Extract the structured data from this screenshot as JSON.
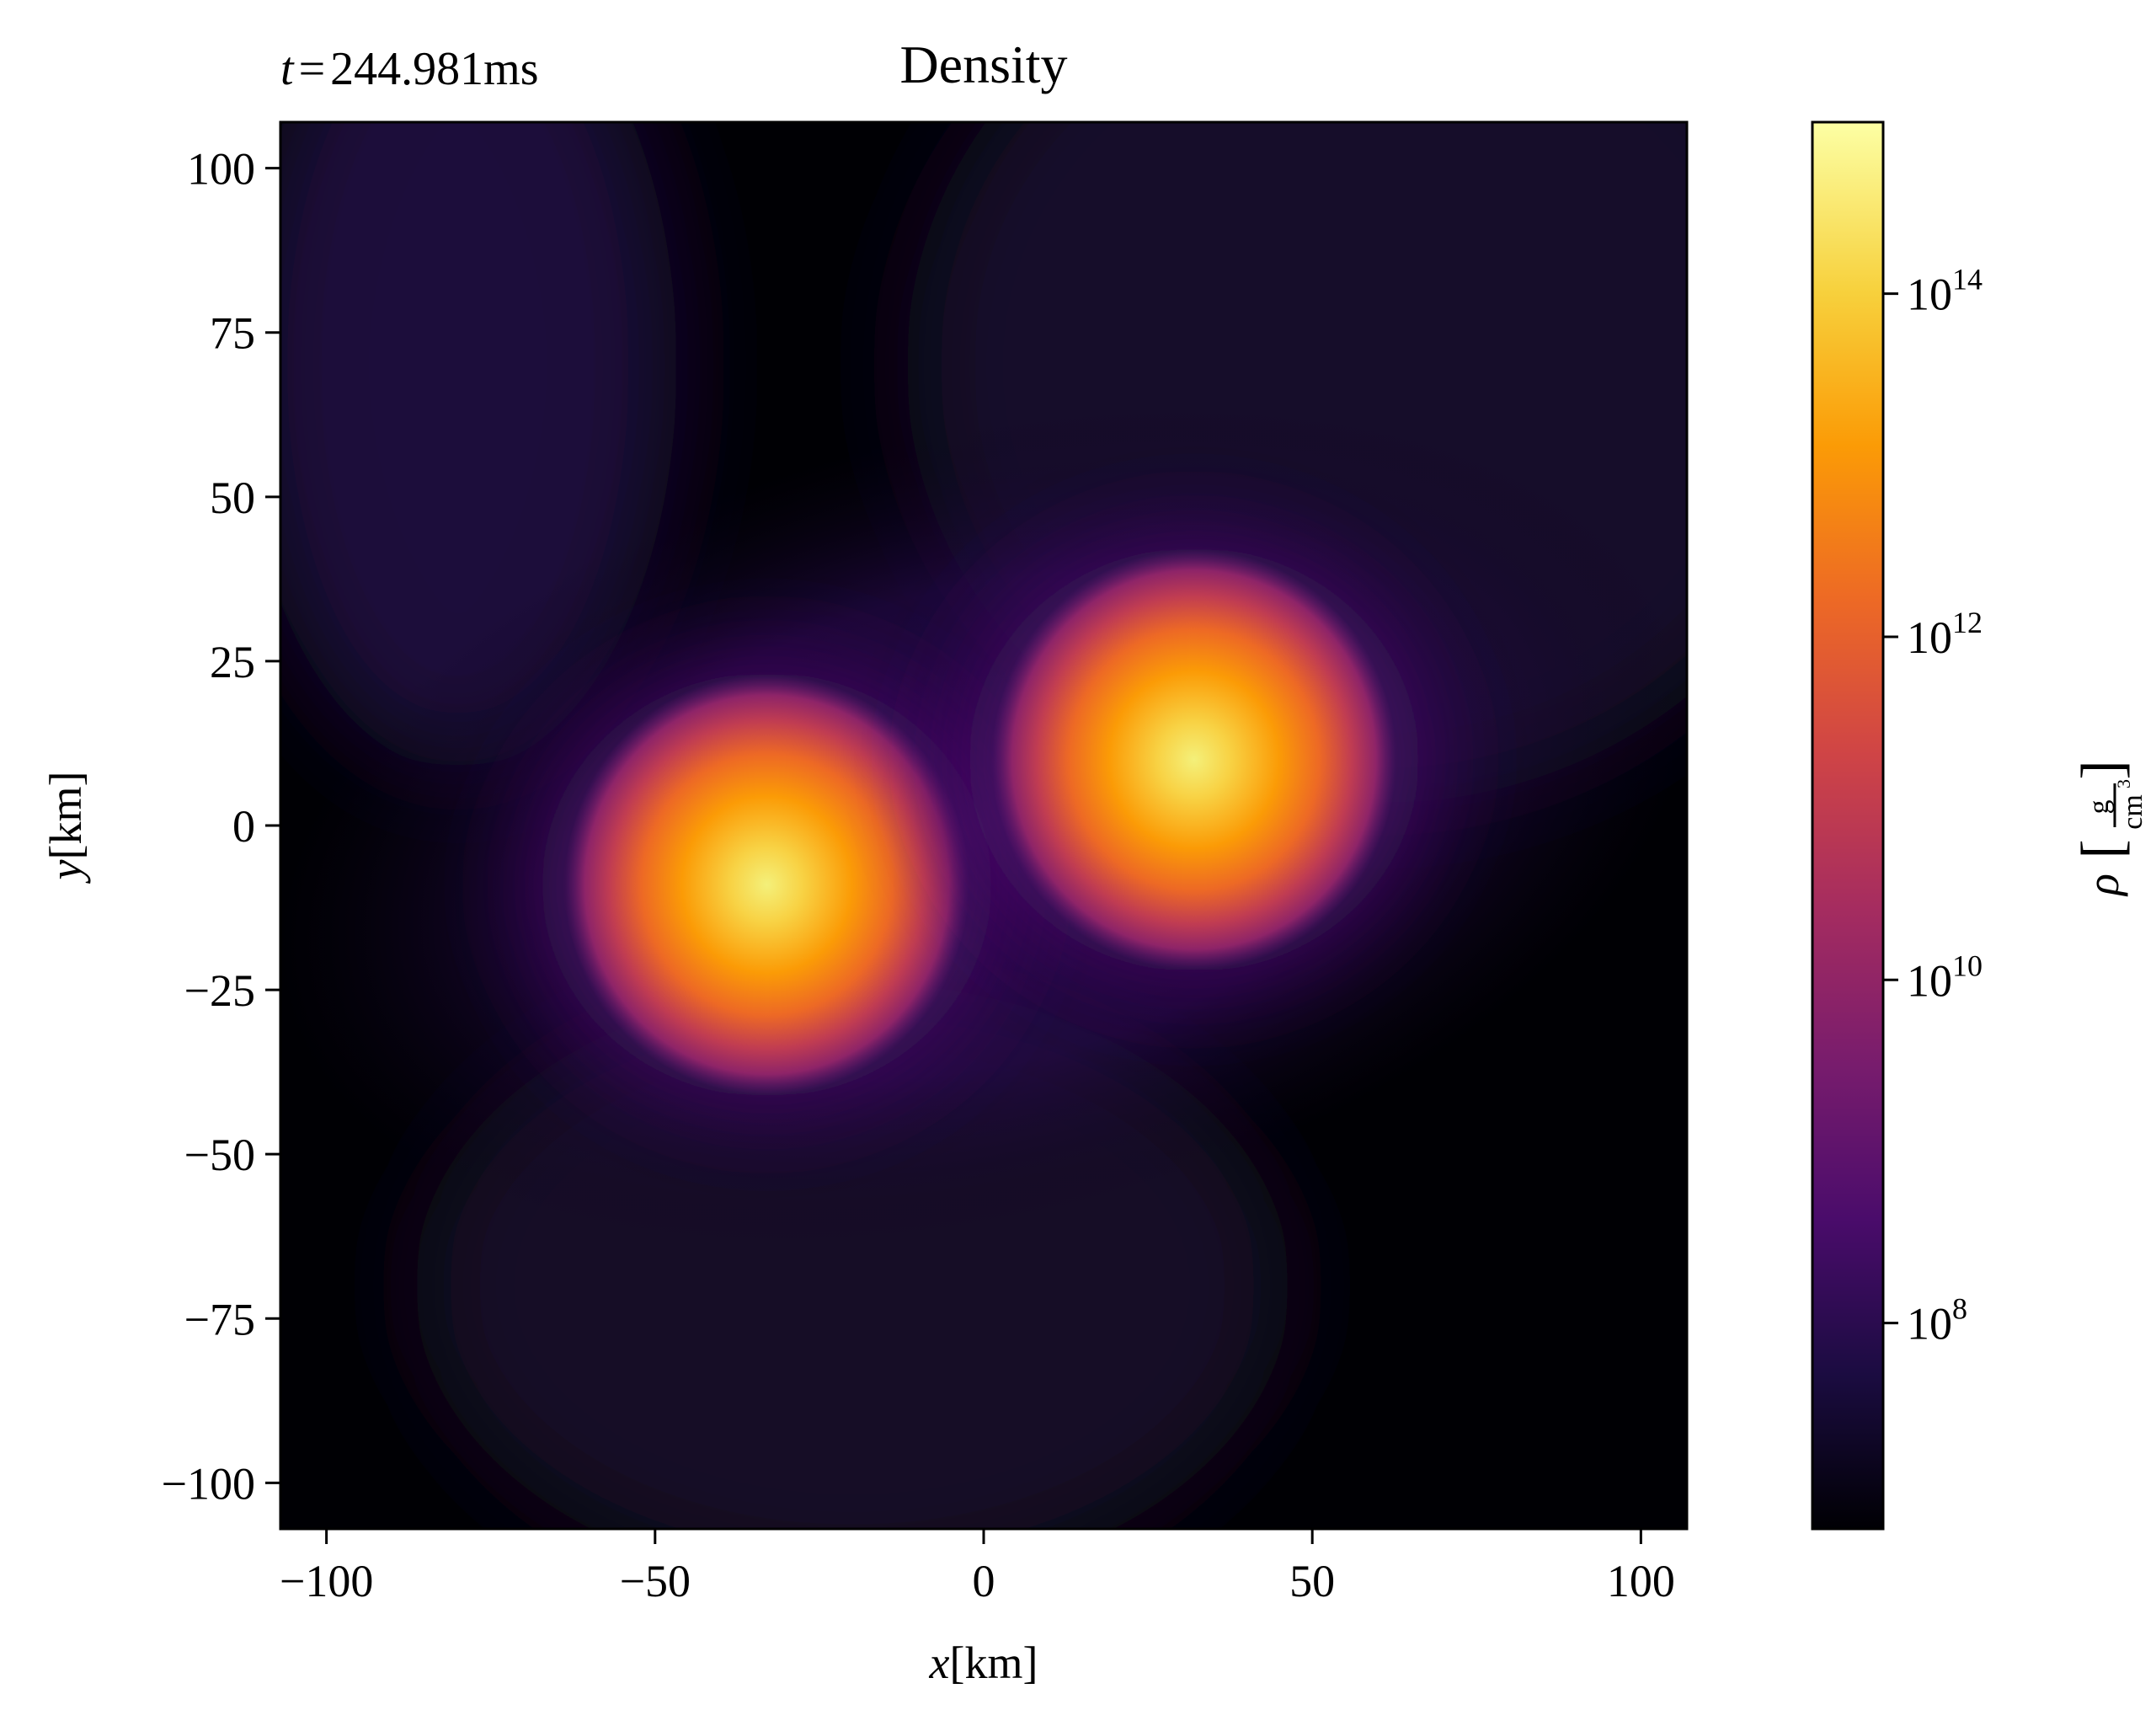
{
  "chart_data": {
    "type": "heatmap",
    "title": "Density",
    "time_annotation": {
      "symbol": "t",
      "equals": "=",
      "value": "244.981",
      "unit": "ms"
    },
    "xlabel": {
      "symbol": "x",
      "unit": "[km]"
    },
    "ylabel": {
      "symbol": "y",
      "unit": "[km]"
    },
    "xlim": [
      -107,
      107
    ],
    "ylim": [
      -107,
      107
    ],
    "xticks": [
      -100,
      -50,
      0,
      50,
      100
    ],
    "yticks": [
      -100,
      -75,
      -50,
      -25,
      0,
      25,
      50,
      75,
      100
    ],
    "xtick_labels": [
      "−100",
      "−50",
      "0",
      "50",
      "100"
    ],
    "ytick_labels": [
      "−100",
      "−75",
      "−50",
      "−25",
      "0",
      "25",
      "50",
      "75",
      "100"
    ],
    "colormap": "inferno",
    "colorbar": {
      "scale": "log",
      "range_log10": [
        6.8,
        15.0
      ],
      "ticks_log10": [
        8,
        10,
        12,
        14
      ],
      "tick_labels": [
        {
          "base": "10",
          "exp": "8"
        },
        {
          "base": "10",
          "exp": "10"
        },
        {
          "base": "10",
          "exp": "12"
        },
        {
          "base": "10",
          "exp": "14"
        }
      ],
      "label": {
        "symbol": "ρ",
        "numerator": "g",
        "denominator": "cm",
        "denominator_exp": "3"
      }
    },
    "density_peaks": [
      {
        "name": "left-core",
        "x": -33,
        "y": -9,
        "peak_log10": 15.0
      },
      {
        "name": "right-core",
        "x": 32,
        "y": 10,
        "peak_log10": 15.0
      }
    ],
    "background_log10": 6.8,
    "colors": {
      "c0": "#000004",
      "c1": "#1b0c41",
      "c2": "#4a0c6b",
      "c3": "#781c6d",
      "c4": "#a52c60",
      "c5": "#cf4446",
      "c6": "#ed6925",
      "c7": "#fb9b06",
      "c8": "#f7d13d",
      "c9": "#fcffa4"
    }
  }
}
